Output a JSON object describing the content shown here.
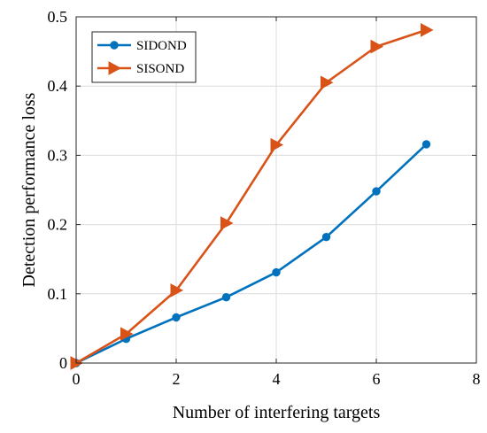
{
  "chart_data": {
    "type": "line",
    "title": "",
    "xlabel": "Number of interfering targets",
    "ylabel": "Detection performance loss",
    "xlim": [
      0,
      8
    ],
    "ylim": [
      0,
      0.5
    ],
    "xticks": [
      "0",
      "2",
      "4",
      "6",
      "8"
    ],
    "yticks": [
      "0",
      "0.1",
      "0.2",
      "0.3",
      "0.4",
      "0.5"
    ],
    "grid": true,
    "legend_position": "top-left",
    "series": [
      {
        "name": "SIDOND",
        "color": "#0072BD",
        "marker": "circle",
        "x": [
          0,
          1,
          2,
          3,
          4,
          5,
          6,
          7
        ],
        "y": [
          0,
          0.035,
          0.066,
          0.095,
          0.131,
          0.182,
          0.248,
          0.316
        ]
      },
      {
        "name": "SISOND",
        "color": "#D95319",
        "marker": "triangle-right",
        "x": [
          0,
          1,
          2,
          3,
          4,
          5,
          6,
          7
        ],
        "y": [
          0,
          0.042,
          0.105,
          0.202,
          0.315,
          0.405,
          0.457,
          0.481
        ]
      }
    ]
  }
}
